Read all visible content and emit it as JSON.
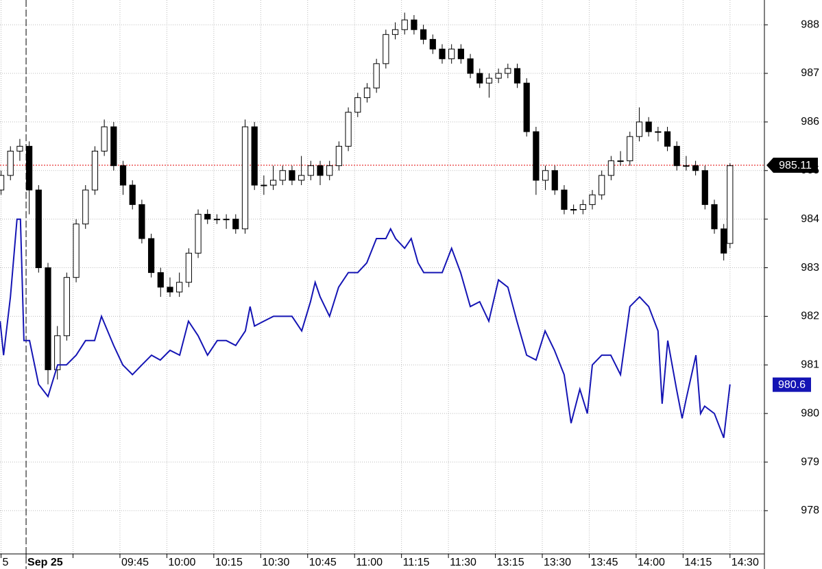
{
  "chart_data": {
    "type": "candlestick",
    "candles": {
      "x": [
        0,
        3,
        6,
        9,
        12,
        15,
        18,
        21,
        24,
        27,
        30,
        33,
        36,
        39,
        42,
        45,
        48,
        51,
        54,
        57,
        60,
        63,
        66,
        69,
        72,
        75,
        78,
        81,
        84,
        87,
        90,
        93,
        96,
        99,
        102,
        105,
        108,
        111,
        114,
        117,
        120,
        123,
        126,
        129,
        132,
        135,
        138,
        141,
        144,
        147,
        150,
        153,
        156,
        159,
        162,
        165,
        168,
        171,
        174,
        177,
        180,
        183,
        186,
        189,
        192,
        195,
        198,
        201,
        204,
        207,
        210,
        213,
        216,
        219,
        222,
        225,
        228,
        231,
        233
      ],
      "open": [
        984.6,
        984.9,
        985.4,
        985.5,
        984.6,
        983.0,
        980.9,
        981.6,
        982.8,
        983.9,
        984.6,
        985.4,
        985.9,
        985.1,
        984.7,
        984.3,
        983.6,
        982.9,
        982.6,
        982.5,
        982.7,
        983.3,
        984.1,
        984.0,
        984.0,
        984.0,
        983.8,
        985.9,
        984.7,
        984.7,
        984.8,
        985.0,
        984.8,
        984.9,
        985.1,
        984.9,
        985.1,
        985.5,
        986.2,
        986.5,
        986.7,
        987.2,
        987.8,
        987.9,
        988.1,
        987.9,
        987.7,
        987.5,
        987.3,
        987.5,
        987.3,
        987.0,
        986.8,
        986.9,
        987.0,
        987.1,
        986.8,
        985.8,
        984.8,
        985.0,
        984.6,
        984.2,
        984.2,
        984.3,
        984.5,
        984.9,
        985.2,
        985.2,
        985.7,
        986.0,
        985.8,
        985.8,
        985.5,
        985.1,
        985.1,
        985.0,
        984.3,
        983.8,
        983.5
      ],
      "high": [
        985.0,
        985.5,
        985.65,
        985.6,
        984.7,
        983.1,
        981.8,
        982.9,
        984.0,
        984.7,
        985.5,
        986.05,
        986.0,
        985.2,
        984.8,
        984.4,
        983.7,
        983.0,
        982.8,
        982.9,
        983.4,
        984.2,
        984.2,
        984.1,
        984.1,
        984.1,
        986.05,
        986.0,
        984.9,
        985.1,
        985.1,
        985.1,
        985.3,
        985.2,
        985.2,
        985.2,
        985.6,
        986.3,
        986.6,
        986.8,
        987.3,
        987.9,
        988.05,
        988.25,
        988.2,
        988.0,
        987.8,
        987.6,
        987.6,
        987.6,
        987.4,
        987.1,
        987.0,
        987.1,
        987.2,
        987.2,
        986.9,
        985.9,
        985.1,
        985.1,
        984.7,
        984.3,
        984.4,
        984.6,
        985.0,
        985.3,
        985.4,
        985.8,
        986.3,
        986.1,
        985.9,
        985.9,
        985.6,
        985.3,
        985.2,
        985.1,
        984.4,
        983.9,
        985.15
      ],
      "low": [
        984.5,
        984.8,
        985.2,
        984.1,
        982.9,
        980.6,
        980.7,
        981.5,
        982.7,
        983.8,
        984.5,
        985.3,
        985.0,
        984.5,
        984.2,
        983.5,
        982.8,
        982.4,
        982.4,
        982.4,
        982.6,
        983.2,
        983.9,
        983.9,
        983.8,
        983.7,
        983.7,
        984.6,
        984.5,
        984.6,
        984.7,
        984.7,
        984.7,
        984.8,
        984.7,
        984.8,
        985.0,
        985.4,
        986.1,
        986.4,
        986.6,
        987.1,
        987.7,
        987.8,
        987.8,
        987.6,
        987.4,
        987.2,
        987.2,
        987.2,
        986.9,
        986.7,
        986.5,
        986.8,
        986.9,
        986.7,
        985.7,
        984.5,
        984.6,
        984.5,
        984.1,
        984.1,
        984.1,
        984.2,
        984.4,
        984.8,
        985.1,
        985.1,
        985.6,
        985.7,
        985.6,
        985.4,
        985.0,
        985.0,
        984.9,
        984.2,
        983.7,
        983.15,
        983.4
      ],
      "close": [
        984.9,
        985.4,
        985.5,
        984.6,
        983.0,
        980.9,
        981.6,
        982.8,
        983.9,
        984.6,
        985.4,
        985.9,
        985.1,
        984.7,
        984.3,
        983.6,
        982.9,
        982.6,
        982.5,
        982.7,
        983.3,
        984.1,
        984.0,
        984.0,
        984.0,
        983.8,
        985.9,
        984.7,
        984.7,
        984.8,
        985.0,
        984.8,
        984.9,
        985.1,
        984.9,
        985.1,
        985.5,
        986.2,
        986.5,
        986.7,
        987.2,
        987.8,
        987.9,
        988.1,
        987.9,
        987.7,
        987.5,
        987.3,
        987.5,
        987.3,
        987.0,
        986.8,
        986.9,
        987.0,
        987.1,
        986.8,
        985.8,
        984.8,
        985.0,
        984.6,
        984.2,
        984.2,
        984.3,
        984.5,
        984.9,
        985.2,
        985.2,
        985.7,
        986.0,
        985.8,
        985.8,
        985.5,
        985.1,
        985.1,
        985.0,
        984.3,
        983.8,
        983.3,
        985.1
      ]
    },
    "line": {
      "color": "#1414b4",
      "x": [
        -0.3,
        0.8,
        3.0,
        5.1,
        6.2,
        7.3,
        9.1,
        12.0,
        15.0,
        18.1,
        20.9,
        24.0,
        27.0,
        29.9,
        32.1,
        36.0,
        38.9,
        42.0,
        45.0,
        48.1,
        50.9,
        54.0,
        57.1,
        59.9,
        63.0,
        66.0,
        69.1,
        72.0,
        75.0,
        78.1,
        79.6,
        81.0,
        84.0,
        87.1,
        89.9,
        93.0,
        96.1,
        98.9,
        100.4,
        102.0,
        105.0,
        107.9,
        111.0,
        114.0,
        116.9,
        120.0,
        123.0,
        124.5,
        126.1,
        129.0,
        131.1,
        133.3,
        135.1,
        137.9,
        141.0,
        144.0,
        146.9,
        150.0,
        153.0,
        155.9,
        159.0,
        162.0,
        164.9,
        168.0,
        171.0,
        173.9,
        176.9,
        180.0,
        182.2,
        185.0,
        187.4,
        189.0,
        192.0,
        194.9,
        198.0,
        201.0,
        204.1,
        207.0,
        210.0,
        211.3,
        213.1,
        215.9,
        217.7,
        219.0,
        222.1,
        223.6,
        224.9,
        228.0,
        231.0,
        233.0
      ],
      "values": [
        981.9,
        981.2,
        982.4,
        984.0,
        984.0,
        981.5,
        981.5,
        980.6,
        980.35,
        981.0,
        981.0,
        981.2,
        981.5,
        981.5,
        982.0,
        981.4,
        981.0,
        980.8,
        981.0,
        981.2,
        981.1,
        981.3,
        981.2,
        981.9,
        981.6,
        981.2,
        981.5,
        981.5,
        981.4,
        981.7,
        982.2,
        981.8,
        981.9,
        982.0,
        982.0,
        982.0,
        981.7,
        982.3,
        982.7,
        982.4,
        982.0,
        982.6,
        982.9,
        982.9,
        983.1,
        983.6,
        983.6,
        983.8,
        983.6,
        983.4,
        983.6,
        983.1,
        982.9,
        982.9,
        982.9,
        983.4,
        982.9,
        982.2,
        982.3,
        981.9,
        982.75,
        982.6,
        981.9,
        981.2,
        981.1,
        981.7,
        981.3,
        980.8,
        979.8,
        980.5,
        980.0,
        981.0,
        981.2,
        981.2,
        980.8,
        982.2,
        982.4,
        982.2,
        981.7,
        980.2,
        981.5,
        980.5,
        979.9,
        980.3,
        981.2,
        980.0,
        980.15,
        980.0,
        979.5,
        980.6
      ]
    },
    "last_price": 985.11,
    "session_break": 8,
    "xlim": [
      -0.34,
      244
    ],
    "xticks": [
      {
        "value": 0,
        "label": "5"
      },
      {
        "value": 8,
        "label": "Sep 25"
      },
      {
        "value": 23,
        "label": null
      },
      {
        "value": 38,
        "label": "09:45"
      },
      {
        "value": 53,
        "label": "10:00"
      },
      {
        "value": 68,
        "label": "10:15"
      },
      {
        "value": 83,
        "label": "10:30"
      },
      {
        "value": 98,
        "label": "10:45"
      },
      {
        "value": 113,
        "label": "11:00"
      },
      {
        "value": 128,
        "label": "11:15"
      },
      {
        "value": 143,
        "label": "11:30"
      },
      {
        "value": 158,
        "label": "13:15"
      },
      {
        "value": 173,
        "label": "13:30"
      },
      {
        "value": 188,
        "label": "13:45"
      },
      {
        "value": 203,
        "label": "14:00"
      },
      {
        "value": 218,
        "label": "14:15"
      },
      {
        "value": 233,
        "label": "14:30"
      }
    ],
    "ylim": [
      977.11,
      988.51
    ],
    "yticks": [
      978,
      979,
      980,
      981,
      982,
      983,
      984,
      985,
      986,
      987,
      988
    ],
    "grid": true
  }
}
